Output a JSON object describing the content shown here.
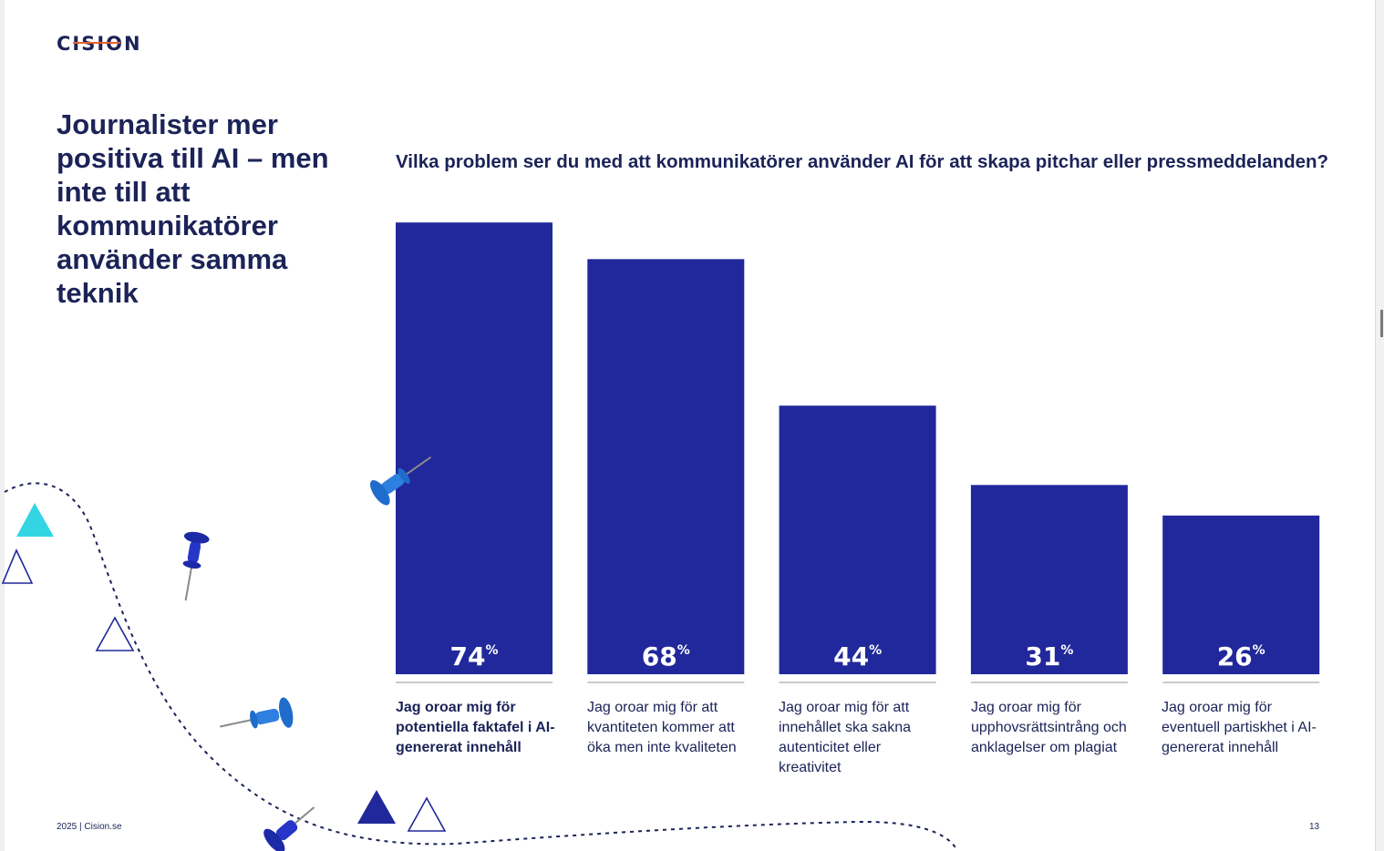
{
  "brand": {
    "logo_text": "CISION",
    "logo_accent_color": "#e8602c"
  },
  "heading": "Journalister mer positiva till AI – men inte till att kommunikatörer använder samma teknik",
  "footer": {
    "left": "2025 | Cision.se",
    "page_number": "13"
  },
  "colors": {
    "bar": "#21289b",
    "text": "#1b2357",
    "baseline": "#b9b9b9"
  },
  "decorations": {
    "icons": [
      "push-pin-icon",
      "triangle-icon",
      "dashed-path"
    ]
  },
  "chart_data": {
    "type": "bar",
    "title": "Vilka problem ser du med att kommunikatörer använder AI för att skapa pitchar eller pressmeddelanden?",
    "categories": [
      "Jag oroar mig för potentiella faktafel i AI-genererat innehåll",
      "Jag oroar mig för att kvantiteten kommer att öka men inte kvaliteten",
      "Jag oroar mig för att innehållet ska sakna autenticitet eller kreativitet",
      "Jag oroar mig för upphovsrättsintrång och anklagelser om plagiat",
      "Jag oroar mig för eventuell partiskhet i AI-genererat innehåll"
    ],
    "values": [
      74,
      68,
      44,
      31,
      26
    ],
    "value_labels": [
      "74",
      "68",
      "44",
      "31",
      "26"
    ],
    "unit": "%",
    "ylim": [
      0,
      100
    ],
    "grid": false,
    "legend": "none"
  }
}
